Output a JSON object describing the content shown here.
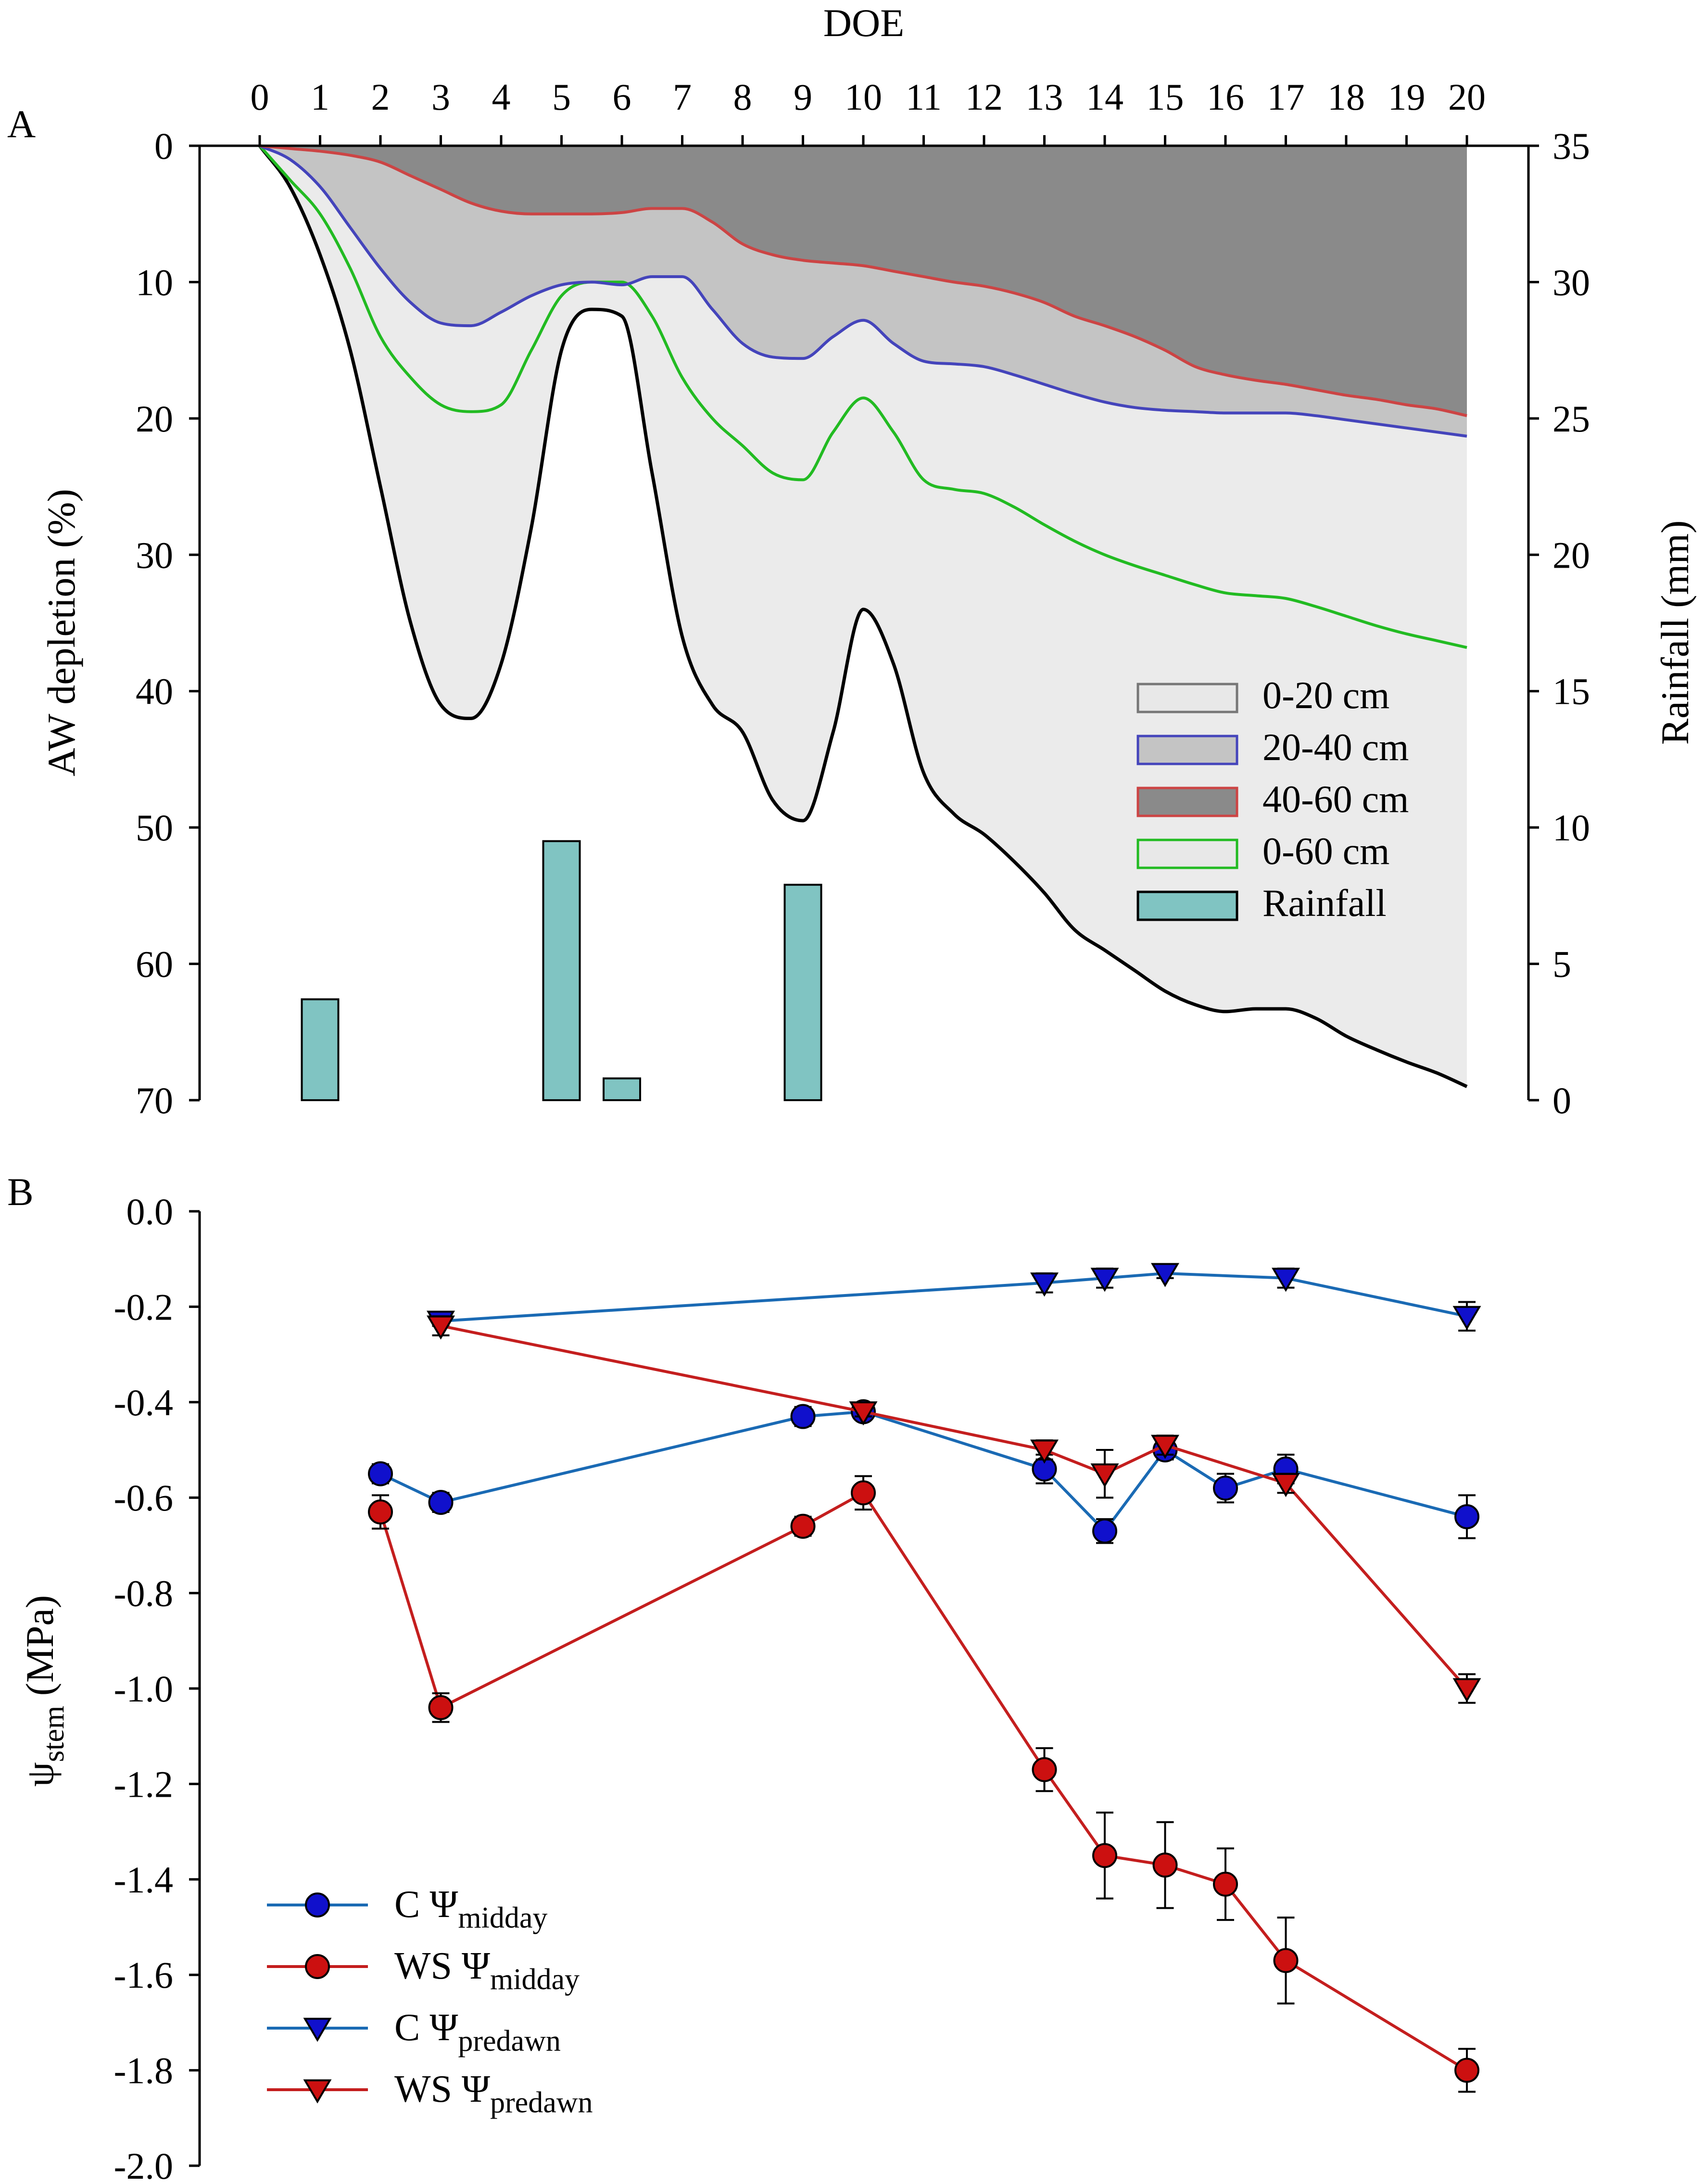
{
  "panels": {
    "a": "A",
    "b": "B"
  },
  "chart_data": [
    {
      "type": "area",
      "panel": "A",
      "title": "",
      "xlabel": "DOE",
      "ylabel": "AW depletion (%)",
      "y2label": "Rainfall (mm)",
      "xlim": [
        0,
        20
      ],
      "ylim": [
        0,
        70
      ],
      "y_inverted": true,
      "y2lim": [
        0,
        35
      ],
      "xticks": [
        "0",
        "1",
        "2",
        "3",
        "4",
        "5",
        "6",
        "7",
        "8",
        "9",
        "10",
        "11",
        "12",
        "13",
        "14",
        "15",
        "16",
        "17",
        "18",
        "19",
        "20"
      ],
      "yticks": [
        "0",
        "10",
        "20",
        "30",
        "40",
        "50",
        "60",
        "70"
      ],
      "y2ticks": [
        "35",
        "30",
        "25",
        "20",
        "15",
        "10",
        "5",
        "0"
      ],
      "x": [
        0,
        0.5,
        1,
        1.5,
        2,
        2.5,
        3,
        3.5,
        4,
        4.5,
        5,
        5.5,
        6,
        6.5,
        7,
        7.5,
        8,
        8.5,
        9,
        9.5,
        10,
        10.5,
        11,
        11.5,
        12,
        12.5,
        13,
        13.5,
        14,
        14.5,
        15,
        15.5,
        16,
        16.5,
        17,
        17.5,
        18,
        18.5,
        19,
        19.5,
        20
      ],
      "series": [
        {
          "name": "0-20 cm",
          "fill": "#ebebeb",
          "line": "#000000",
          "values": [
            0,
            3,
            8,
            15,
            25,
            35,
            41,
            42,
            38,
            28,
            15,
            12,
            12.5,
            24,
            36,
            41,
            43,
            48,
            49.5,
            43,
            34,
            38,
            46,
            49,
            50.5,
            52.5,
            54.8,
            57.5,
            59,
            60.5,
            62,
            63,
            63.5,
            63.3,
            63.3,
            64,
            65.3,
            66.3,
            67.2,
            68,
            69
          ]
        },
        {
          "name": "0-60 cm",
          "fill": "none",
          "line": "#22bb22",
          "values": [
            0,
            2.5,
            5,
            9,
            14,
            17,
            19,
            19.5,
            19,
            15,
            11,
            10,
            10,
            12.5,
            17,
            20,
            22,
            24,
            24.5,
            21,
            18.5,
            21,
            24.5,
            25.2,
            25.5,
            26.5,
            27.8,
            29,
            30,
            30.8,
            31.5,
            32.2,
            32.8,
            33,
            33.2,
            33.8,
            34.5,
            35.2,
            35.8,
            36.3,
            36.8
          ]
        },
        {
          "name": "20-40 cm",
          "fill": "#c4c4c4",
          "line": "#4444bb",
          "values": [
            0,
            1,
            3,
            6,
            9,
            11.5,
            13,
            13.2,
            12.2,
            11,
            10.2,
            10,
            10.2,
            9.6,
            9.6,
            12,
            14.5,
            15.5,
            15.6,
            14,
            12.8,
            14.5,
            15.8,
            16,
            16.2,
            16.8,
            17.5,
            18.2,
            18.8,
            19.2,
            19.4,
            19.5,
            19.6,
            19.6,
            19.6,
            19.8,
            20.1,
            20.4,
            20.7,
            21,
            21.3
          ]
        },
        {
          "name": "40-60 cm",
          "fill": "#8a8a8a",
          "line": "#cc4444",
          "values": [
            0,
            0.2,
            0.4,
            0.7,
            1.2,
            2.2,
            3.2,
            4.2,
            4.8,
            5,
            5,
            5,
            4.9,
            4.6,
            4.6,
            5.6,
            7.2,
            8,
            8.4,
            8.6,
            8.8,
            9.2,
            9.6,
            10,
            10.3,
            10.8,
            11.5,
            12.5,
            13.2,
            14,
            15,
            16.2,
            16.8,
            17.2,
            17.5,
            17.9,
            18.3,
            18.6,
            19,
            19.3,
            19.8
          ]
        }
      ],
      "rainfall": {
        "name": "Rainfall",
        "fill": "#80c4c2",
        "doe": [
          1,
          5,
          6,
          9
        ],
        "mm": [
          3.7,
          9.5,
          0.8,
          7.9
        ]
      },
      "legend": {
        "position": "right-middle",
        "entries": [
          "0-20 cm",
          "20-40 cm",
          "40-60 cm",
          "0-60 cm",
          "Rainfall"
        ]
      }
    },
    {
      "type": "line",
      "panel": "B",
      "title": "",
      "xlabel": "DOE",
      "ylabel": "ψstem (MPa)",
      "ylabel_main": "ψ",
      "ylabel_sub": "stem",
      "ylabel_unit": " (MPa)",
      "xlim": [
        0,
        20
      ],
      "ylim": [
        -2.0,
        0.0
      ],
      "yticks": [
        "0.0",
        "-0.2",
        "-0.4",
        "-0.6",
        "-0.8",
        "-1.0",
        "-1.2",
        "-1.4",
        "-1.6",
        "-1.8",
        "-2.0"
      ],
      "series": [
        {
          "name": "C Ψmidday",
          "label_main": "C Ψ",
          "label_sub": "midday",
          "marker": "circle",
          "marker_fill": "#1010cc",
          "line": "#1a6ab4",
          "x": [
            2,
            3,
            9,
            10,
            13,
            14,
            15,
            16,
            17,
            20
          ],
          "y": [
            -0.55,
            -0.61,
            -0.43,
            -0.42,
            -0.54,
            -0.67,
            -0.5,
            -0.58,
            -0.54,
            -0.64
          ],
          "err": [
            0.02,
            0.02,
            0.02,
            0.01,
            0.03,
            0.025,
            0.02,
            0.03,
            0.03,
            0.045
          ]
        },
        {
          "name": "WS Ψmidday",
          "label_main": "WS Ψ",
          "label_sub": "midday",
          "marker": "circle",
          "marker_fill": "#cc1010",
          "line": "#c41e1e",
          "x": [
            2,
            3,
            9,
            10,
            13,
            14,
            15,
            16,
            17,
            20
          ],
          "y": [
            -0.63,
            -1.04,
            -0.66,
            -0.59,
            -1.17,
            -1.35,
            -1.37,
            -1.41,
            -1.57,
            -1.8
          ],
          "err": [
            0.035,
            0.03,
            0.02,
            0.035,
            0.045,
            0.09,
            0.09,
            0.075,
            0.09,
            0.045
          ]
        },
        {
          "name": "C Ψpredawn",
          "label_main": "C Ψ",
          "label_sub": "predawn",
          "marker": "triangle-down",
          "marker_fill": "#1010cc",
          "line": "#1a6ab4",
          "x": [
            3,
            13,
            14,
            15,
            17,
            20
          ],
          "y": [
            -0.23,
            -0.15,
            -0.14,
            -0.13,
            -0.14,
            -0.22
          ],
          "err": [
            0.01,
            0.02,
            0.02,
            0.01,
            0.02,
            0.03
          ]
        },
        {
          "name": "WS Ψpredawn",
          "label_main": "WS Ψ",
          "label_sub": "predawn",
          "marker": "triangle-down",
          "marker_fill": "#cc1010",
          "line": "#c41e1e",
          "x": [
            3,
            10,
            13,
            14,
            15,
            17,
            20
          ],
          "y": [
            -0.24,
            -0.42,
            -0.5,
            -0.55,
            -0.49,
            -0.57,
            -1.0
          ],
          "err": [
            0.02,
            0.01,
            0.02,
            0.05,
            0.02,
            0.02,
            0.03
          ]
        }
      ],
      "legend": {
        "position": "bottom-left"
      }
    }
  ]
}
